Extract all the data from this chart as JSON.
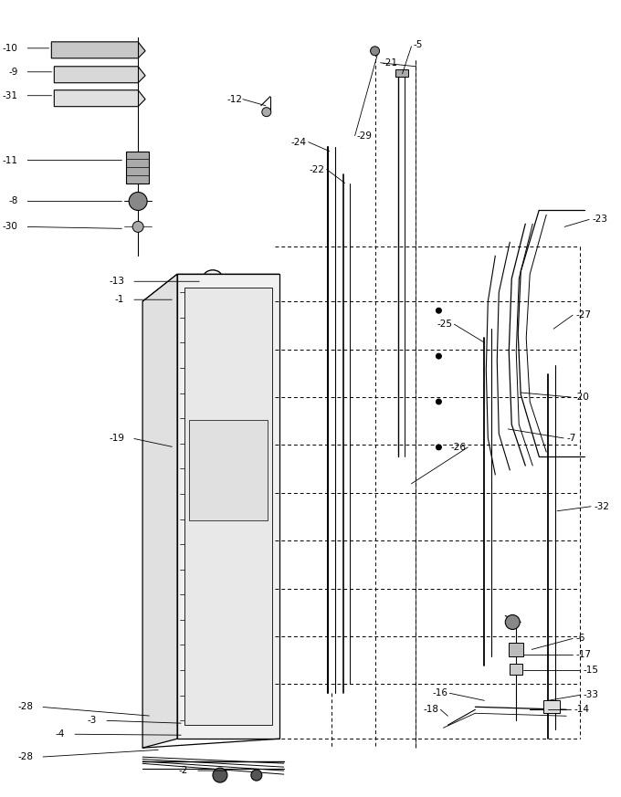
{
  "figsize": [
    6.8,
    8.73
  ],
  "dpi": 100,
  "bg_color": "#ffffff"
}
